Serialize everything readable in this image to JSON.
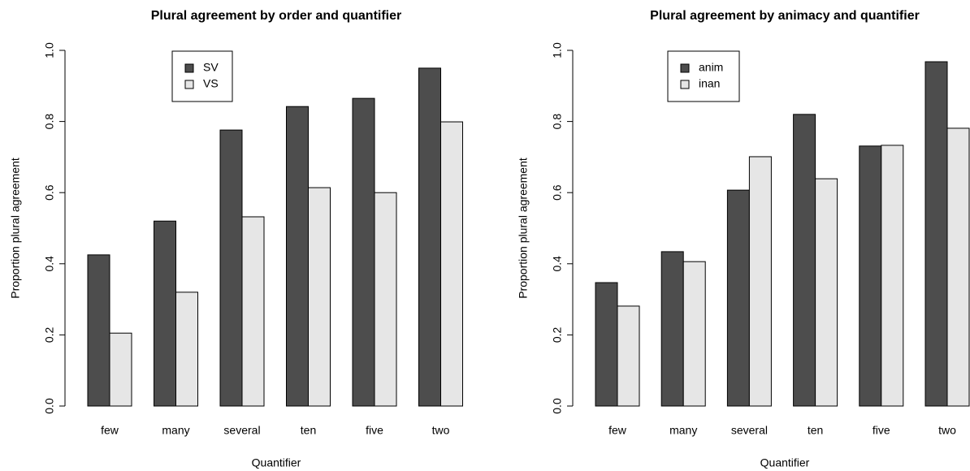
{
  "chart_data": [
    {
      "type": "bar",
      "title": "Plural agreement by order and quantifier",
      "x_label": "Quantifier",
      "y_label": "Proportion plural agreement",
      "categories": [
        "few",
        "many",
        "several",
        "ten",
        "five",
        "two"
      ],
      "series": [
        {
          "name": "SV",
          "color": "#4d4d4d",
          "values": [
            0.425,
            0.52,
            0.776,
            0.842,
            0.865,
            0.95
          ]
        },
        {
          "name": "VS",
          "color": "#e6e6e6",
          "values": [
            0.205,
            0.32,
            0.532,
            0.614,
            0.6,
            0.799
          ]
        }
      ],
      "ylim": [
        0,
        1
      ],
      "yticks": [
        {
          "value": 0,
          "label": "0.0"
        },
        0.2,
        0.4,
        0.6,
        0.8,
        {
          "value": 1,
          "label": "1.0"
        }
      ],
      "legend": "top"
    },
    {
      "type": "bar",
      "title": "Plural agreement by animacy and quantifier",
      "x_label": "Quantifier",
      "y_label": "Proportion plural agreement",
      "categories": [
        "few",
        "many",
        "several",
        "ten",
        "five",
        "two"
      ],
      "series": [
        {
          "name": "anim",
          "color": "#4d4d4d",
          "values": [
            0.347,
            0.434,
            0.607,
            0.82,
            0.731,
            0.968
          ]
        },
        {
          "name": "inan",
          "color": "#e6e6e6",
          "values": [
            0.281,
            0.406,
            0.701,
            0.639,
            0.733,
            0.781
          ]
        }
      ],
      "ylim": [
        0,
        1
      ],
      "yticks": [
        {
          "value": 0,
          "label": "0.0"
        },
        0.2,
        0.4,
        0.6,
        0.8,
        {
          "value": 1,
          "label": "1.0"
        }
      ],
      "legend": "top"
    }
  ]
}
